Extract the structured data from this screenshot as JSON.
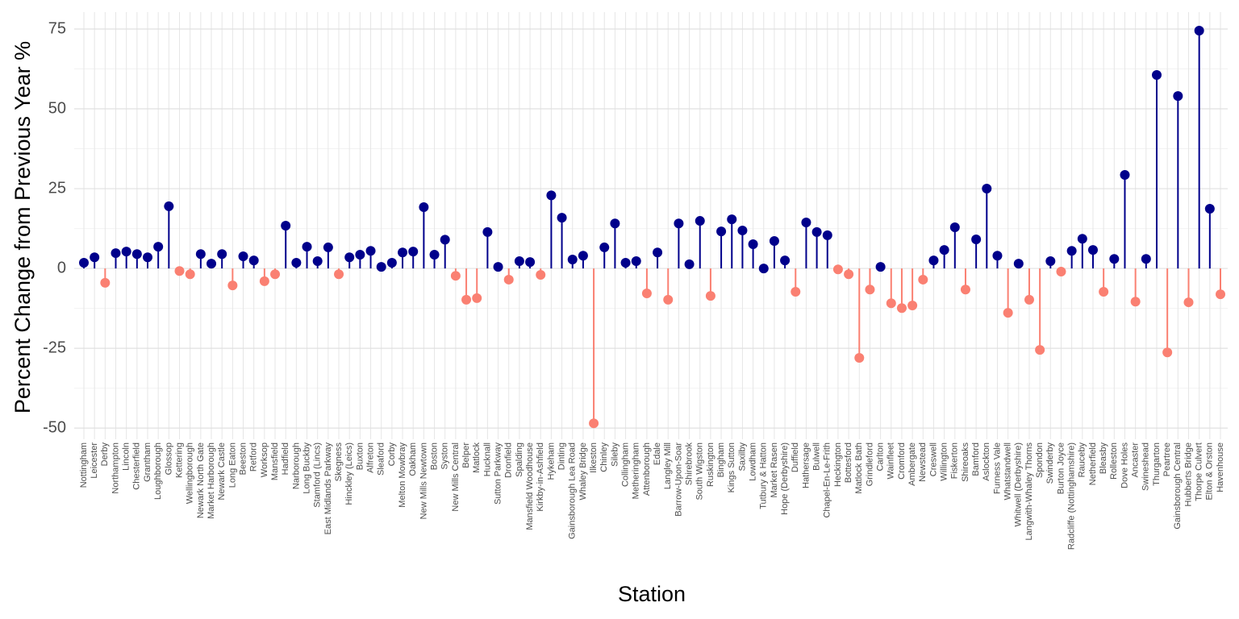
{
  "chart_data": {
    "type": "lollipop",
    "x_label": "Station",
    "y_label": "Percent Change from Previous Year %",
    "categories": [
      "Nottingham",
      "Leicester",
      "Derby",
      "Northampton",
      "Lincoln",
      "Chesterfield",
      "Grantham",
      "Loughborough",
      "Glossop",
      "Kettering",
      "Wellingborough",
      "Newark North Gate",
      "Market Harborough",
      "Newark Castle",
      "Long Eaton",
      "Beeston",
      "Retford",
      "Worksop",
      "Mansfield",
      "Hadfield",
      "Narborough",
      "Long Buckby",
      "Stamford (Lincs)",
      "East Midlands Parkway",
      "Skegness",
      "Hinckley (Leics)",
      "Buxton",
      "Alfreton",
      "Sleaford",
      "Corby",
      "Melton Mowbray",
      "Oakham",
      "New Mills Newtown",
      "Boston",
      "Syston",
      "New Mills Central",
      "Belper",
      "Matlock",
      "Hucknall",
      "Sutton Parkway",
      "Dronfield",
      "Spalding",
      "Mansfield Woodhouse",
      "Kirkby-in-Ashfield",
      "Hykeham",
      "Dinting",
      "Gainsborough Lea Road",
      "Whaley Bridge",
      "Ilkeston",
      "Chinley",
      "Sileby",
      "Collingham",
      "Metheringham",
      "Attenborough",
      "Edale",
      "Langley Mill",
      "Barrow-Upon-Soar",
      "Shirebrook",
      "South Wigston",
      "Ruskington",
      "Bingham",
      "Kings Sutton",
      "Saxilby",
      "Lowdham",
      "Tutbury & Hatton",
      "Market Rasen",
      "Hope (Derbyshire)",
      "Duffield",
      "Hathersage",
      "Bulwell",
      "Chapel-En-Le-Frith",
      "Heckington",
      "Bottesford",
      "Matlock Bath",
      "Grindleford",
      "Carlton",
      "Wainfleet",
      "Cromford",
      "Ambergate",
      "Newstead",
      "Creswell",
      "Willington",
      "Fiskerton",
      "Shireoaks",
      "Bamford",
      "Aslockton",
      "Furness Vale",
      "Whatstandwell",
      "Whitwell (Derbyshire)",
      "Langwith-Whaley Thorns",
      "Spondon",
      "Swinderby",
      "Burton Joyce",
      "Radcliffe (Nottinghamshire)",
      "Rauceby",
      "Netherfield",
      "Bleasby",
      "Rolleston",
      "Dove Holes",
      "Ancaster",
      "Swineshead",
      "Thurgarton",
      "Peartree",
      "Gainsborough Central",
      "Hubberts Bridge",
      "Thorpe Culvert",
      "Elton & Orston",
      "Havenhouse"
    ],
    "values": [
      1.8,
      3.5,
      -4.5,
      4.8,
      5.3,
      4.5,
      3.5,
      6.8,
      19.5,
      -0.8,
      -1.8,
      4.5,
      1.5,
      4.5,
      -5.3,
      3.8,
      2.5,
      -4,
      -1.8,
      13.4,
      1.8,
      6.8,
      2.3,
      6.6,
      -1.8,
      3.5,
      4.3,
      5.5,
      0.5,
      1.8,
      5,
      5.3,
      19.2,
      4.3,
      9,
      -2.3,
      -9.8,
      -9.3,
      11.4,
      0.5,
      -3.5,
      2.3,
      2,
      -2,
      22.9,
      15.9,
      2.8,
      4,
      -48.5,
      6.6,
      14.1,
      1.8,
      2.3,
      -7.8,
      5,
      -9.8,
      14.1,
      1.3,
      14.9,
      -8.6,
      11.6,
      15.4,
      11.9,
      7.6,
      0,
      8.6,
      2.5,
      -7.3,
      14.4,
      11.4,
      10.4,
      -0.3,
      -1.8,
      -28,
      -6.6,
      0.5,
      -10.9,
      -12.4,
      -11.6,
      -3.5,
      2.5,
      5.8,
      12.9,
      -6.6,
      9.1,
      25,
      4,
      -13.9,
      1.5,
      -9.8,
      -25.5,
      2.3,
      -1,
      5.5,
      9.3,
      5.8,
      -7.3,
      3,
      29.3,
      -10.4,
      3,
      60.6,
      -26.3,
      54,
      -10.6,
      74.5,
      18.7,
      -8.1
    ],
    "colors": {
      "positive": "#00008B",
      "negative": "#FA8072"
    },
    "ylim": [
      -53.5,
      80.3
    ],
    "yticks": [
      -50,
      -25,
      0,
      25,
      50,
      75
    ],
    "grid": true
  }
}
